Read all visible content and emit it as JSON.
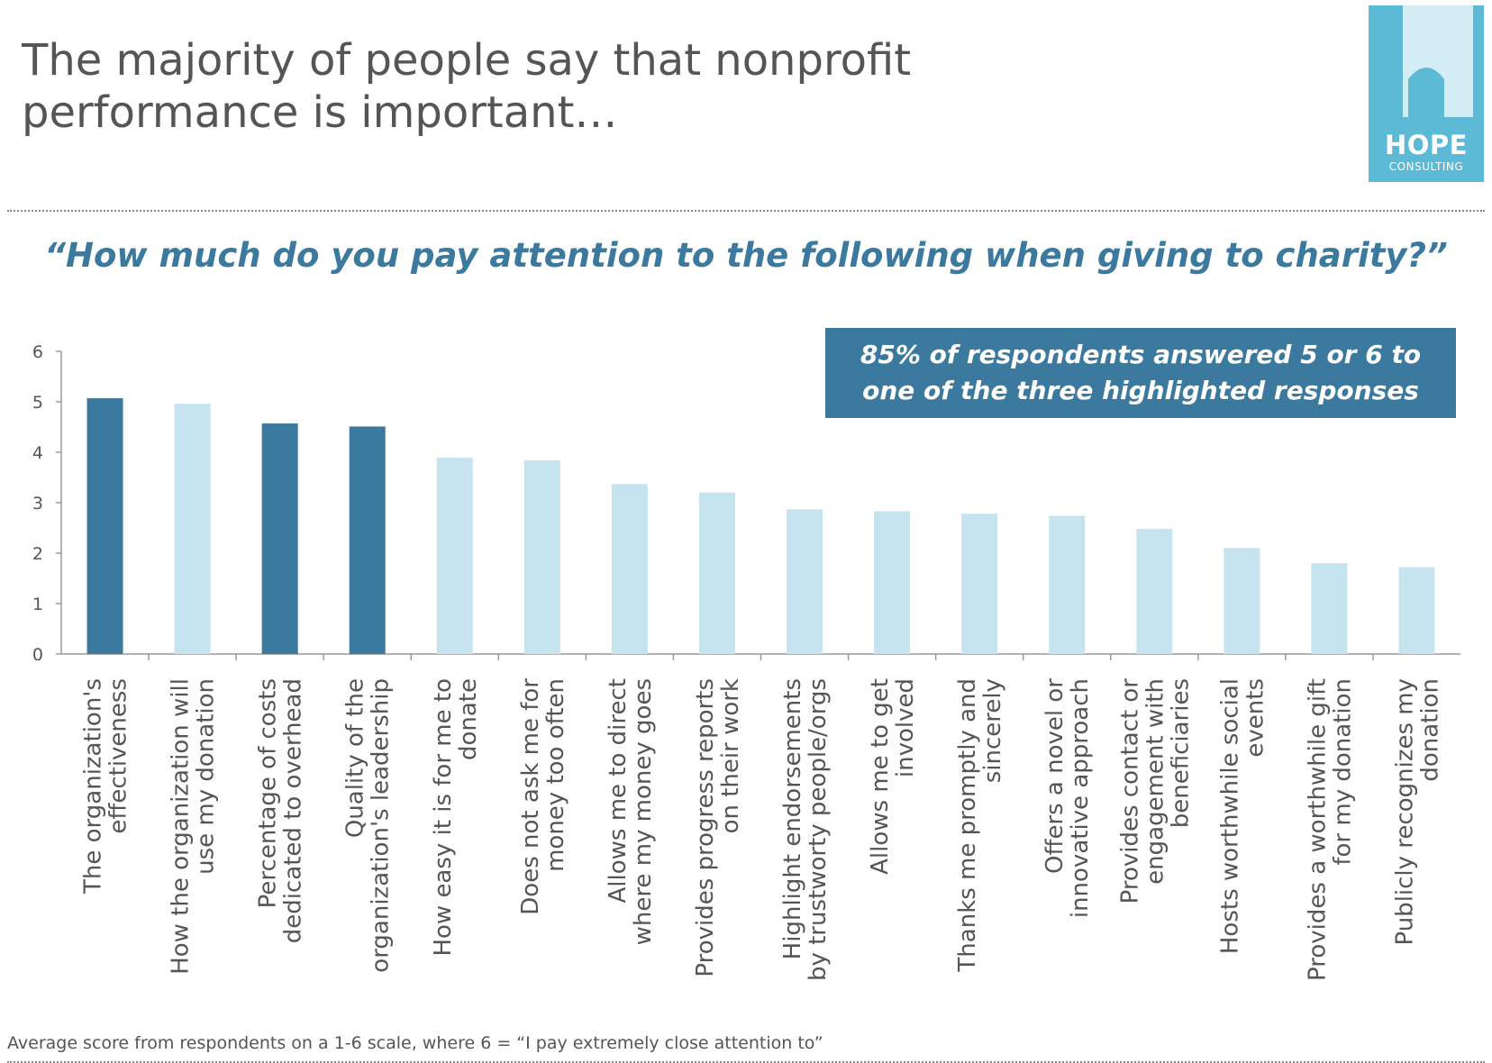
{
  "title_line1": "The majority of people say that nonprofit",
  "title_line2": "performance is important…",
  "logo": {
    "name": "HOPE",
    "sub": "CONSULTING",
    "color": "#5cbad6"
  },
  "question": "“How much do you pay attention to the following when giving to charity?”",
  "callout": {
    "line1": "85% of respondents answered 5 or 6 to",
    "line2": "one of the three highlighted responses"
  },
  "footnote": "Average score from respondents on a 1-6 scale, where 6 = “I pay extremely close attention to”",
  "colors": {
    "highlight": "#3b7a9e",
    "normal": "#c6e4ef",
    "text": "#555555"
  },
  "chart_data": {
    "type": "bar",
    "title": "“How much do you pay attention to the following when giving to charity?”",
    "xlabel": "",
    "ylabel": "",
    "ylim": [
      0,
      6
    ],
    "yticks": [
      0,
      1,
      2,
      3,
      4,
      5,
      6
    ],
    "grid": false,
    "categories": [
      [
        "The organization's",
        "effectiveness"
      ],
      [
        "How the organization will",
        "use my donation"
      ],
      [
        "Percentage of costs",
        "dedicated to overhead"
      ],
      [
        "Quality of the",
        "organization's leadership"
      ],
      [
        "How easy it is for me to",
        "donate"
      ],
      [
        "Does not ask me for",
        "money too often"
      ],
      [
        "Allows me to direct",
        "where my money goes"
      ],
      [
        "Provides progress reports",
        "on their work"
      ],
      [
        "Highlight endorsements",
        "by trustworty people/orgs"
      ],
      [
        "Allows me to get",
        "involved"
      ],
      [
        "Thanks me promptly and",
        "sincerely"
      ],
      [
        "Offers a novel or",
        "innovative approach"
      ],
      [
        "Provides contact or",
        "engagement with",
        "beneficiaries"
      ],
      [
        "Hosts worthwhile social",
        "events"
      ],
      [
        "Provides a worthwhile gift",
        "for my donation"
      ],
      [
        "Publicly recognizes my",
        "donation"
      ]
    ],
    "values": [
      5.07,
      4.96,
      4.57,
      4.51,
      3.89,
      3.84,
      3.37,
      3.2,
      2.87,
      2.83,
      2.78,
      2.74,
      2.48,
      2.1,
      1.8,
      1.72
    ],
    "highlighted": [
      true,
      false,
      true,
      true,
      false,
      false,
      false,
      false,
      false,
      false,
      false,
      false,
      false,
      false,
      false,
      false
    ]
  }
}
